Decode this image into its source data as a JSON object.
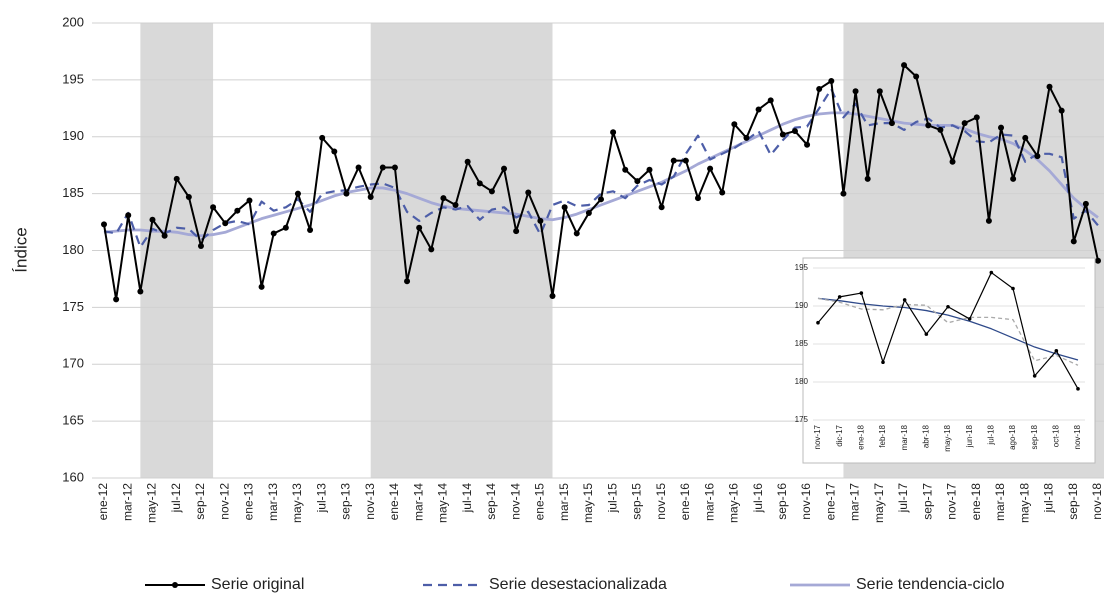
{
  "chart_data": [
    {
      "type": "line",
      "y_label": "Índice",
      "categories": [
        "ene-12",
        null,
        "mar-12",
        null,
        "may-12",
        null,
        "jul-12",
        null,
        "sep-12",
        null,
        "nov-12",
        null,
        "ene-13",
        null,
        "mar-13",
        null,
        "may-13",
        null,
        "jul-13",
        null,
        "sep-13",
        null,
        "nov-13",
        null,
        "ene-14",
        null,
        "mar-14",
        null,
        "may-14",
        null,
        "jul-14",
        null,
        "sep-14",
        null,
        "nov-14",
        null,
        "ene-15",
        null,
        "mar-15",
        null,
        "may-15",
        null,
        "jul-15",
        null,
        "sep-15",
        null,
        "nov-15",
        null,
        "ene-16",
        null,
        "mar-16",
        null,
        "may-16",
        null,
        "jul-16",
        null,
        "sep-16",
        null,
        "nov-16",
        null,
        "ene-17",
        null,
        "mar-17",
        null,
        "may-17",
        null,
        "jul-17",
        null,
        "sep-17",
        null,
        "nov-17",
        null,
        "ene-18",
        null,
        "mar-18",
        null,
        "may-18",
        null,
        "jul-18",
        null,
        "sep-18",
        null,
        "nov-18"
      ],
      "series": [
        {
          "name": "Serie original",
          "color": "#000000",
          "style": "markers",
          "values": [
            182.3,
            175.7,
            183.1,
            176.4,
            182.7,
            181.3,
            186.3,
            184.7,
            180.4,
            183.8,
            182.4,
            183.5,
            184.4,
            176.8,
            181.5,
            182.0,
            185.0,
            181.8,
            189.9,
            188.7,
            185.0,
            187.3,
            184.7,
            187.3,
            187.3,
            177.3,
            182.0,
            180.1,
            184.6,
            184.0,
            187.8,
            185.9,
            185.2,
            187.2,
            181.7,
            185.1,
            182.6,
            176.0,
            183.8,
            181.5,
            183.3,
            184.5,
            190.4,
            187.1,
            186.1,
            187.1,
            183.8,
            187.9,
            187.9,
            184.6,
            187.2,
            185.1,
            191.1,
            189.9,
            192.4,
            193.2,
            190.2,
            190.5,
            189.3,
            194.2,
            194.9,
            185.0,
            194.0,
            186.3,
            194.0,
            191.2,
            196.3,
            195.3,
            191.0,
            190.6,
            187.8,
            191.2,
            191.7,
            182.6,
            190.8,
            186.3,
            189.9,
            188.3,
            194.4,
            192.3,
            180.8,
            184.1,
            179.1
          ]
        },
        {
          "name": "Serie desestacionalizada",
          "color": "#4d5ea8",
          "style": "dashed",
          "values": [
            181.7,
            181.5,
            183.3,
            180.3,
            181.9,
            181.5,
            182.0,
            181.9,
            180.9,
            181.8,
            182.4,
            182.6,
            182.3,
            184.3,
            183.5,
            183.8,
            184.5,
            183.4,
            185.0,
            185.2,
            185.3,
            185.6,
            185.8,
            185.9,
            185.5,
            183.4,
            182.6,
            183.3,
            183.8,
            183.6,
            183.9,
            182.7,
            183.6,
            183.8,
            182.9,
            183.4,
            181.4,
            184.0,
            184.4,
            183.9,
            184.0,
            185.0,
            185.2,
            184.6,
            185.7,
            186.2,
            185.8,
            186.5,
            188.5,
            190.1,
            188.0,
            188.5,
            189.0,
            189.7,
            190.5,
            188.4,
            189.7,
            190.8,
            190.9,
            192.5,
            194.2,
            191.7,
            192.9,
            191.0,
            191.2,
            191.2,
            190.6,
            191.3,
            191.6,
            190.8,
            191.0,
            190.5,
            189.6,
            189.5,
            190.2,
            190.1,
            187.8,
            188.5,
            188.5,
            188.2,
            182.8,
            183.5,
            182.2
          ]
        },
        {
          "name": "Serie tendencia-ciclo",
          "color": "#a5a9d6",
          "style": "thick",
          "values": [
            181.6,
            181.7,
            181.8,
            181.8,
            181.7,
            181.7,
            181.6,
            181.4,
            181.3,
            181.4,
            181.6,
            182.0,
            182.4,
            182.8,
            183.1,
            183.4,
            183.7,
            184.0,
            184.4,
            184.8,
            185.1,
            185.3,
            185.5,
            185.5,
            185.3,
            185.0,
            184.6,
            184.2,
            183.9,
            183.7,
            183.6,
            183.5,
            183.4,
            183.3,
            183.2,
            183.0,
            182.8,
            182.7,
            182.9,
            183.2,
            183.6,
            184.0,
            184.4,
            184.8,
            185.2,
            185.6,
            186.0,
            186.5,
            187.0,
            187.6,
            188.1,
            188.6,
            189.1,
            189.6,
            190.1,
            190.6,
            191.1,
            191.5,
            191.8,
            192.0,
            192.1,
            192.1,
            192.0,
            191.8,
            191.6,
            191.4,
            191.2,
            191.1,
            191.0,
            191.0,
            191.0,
            190.7,
            190.3,
            190.0,
            189.8,
            189.4,
            188.8,
            188.0,
            187.0,
            185.8,
            184.6,
            183.7,
            182.9
          ]
        }
      ],
      "ylim": [
        160,
        200
      ],
      "yticks": [
        160,
        165,
        170,
        175,
        180,
        185,
        190,
        195,
        200
      ],
      "grid": true,
      "shaded_periods": [
        [
          3,
          9
        ],
        [
          22,
          37
        ],
        [
          61,
          82
        ]
      ],
      "legend": "bottom"
    },
    {
      "type": "line",
      "categories": [
        "nov-17",
        "dic-17",
        "ene-18",
        "feb-18",
        "mar-18",
        "abr-18",
        "may-18",
        "jun-18",
        "jul-18",
        "ago-18",
        "sep-18",
        "oct-18",
        "nov-18"
      ],
      "series": [
        {
          "color": "#000000",
          "style": "markers",
          "values": [
            187.8,
            191.2,
            191.7,
            182.6,
            190.8,
            186.3,
            189.9,
            188.3,
            194.4,
            192.3,
            180.8,
            184.1,
            179.1
          ]
        },
        {
          "color": "#aaaaaa",
          "style": "dashed",
          "values": [
            191.0,
            190.5,
            189.6,
            189.5,
            190.2,
            190.1,
            187.8,
            188.5,
            188.5,
            188.2,
            182.8,
            183.5,
            182.2
          ]
        },
        {
          "color": "#2f4a8a",
          "style": "thin",
          "values": [
            191.0,
            190.7,
            190.3,
            190.0,
            189.8,
            189.4,
            188.8,
            188.0,
            187.0,
            185.8,
            184.6,
            183.7,
            182.9
          ]
        }
      ],
      "ylim": [
        175,
        195
      ],
      "yticks": [
        175,
        180,
        185,
        190,
        195
      ],
      "grid": true
    }
  ]
}
